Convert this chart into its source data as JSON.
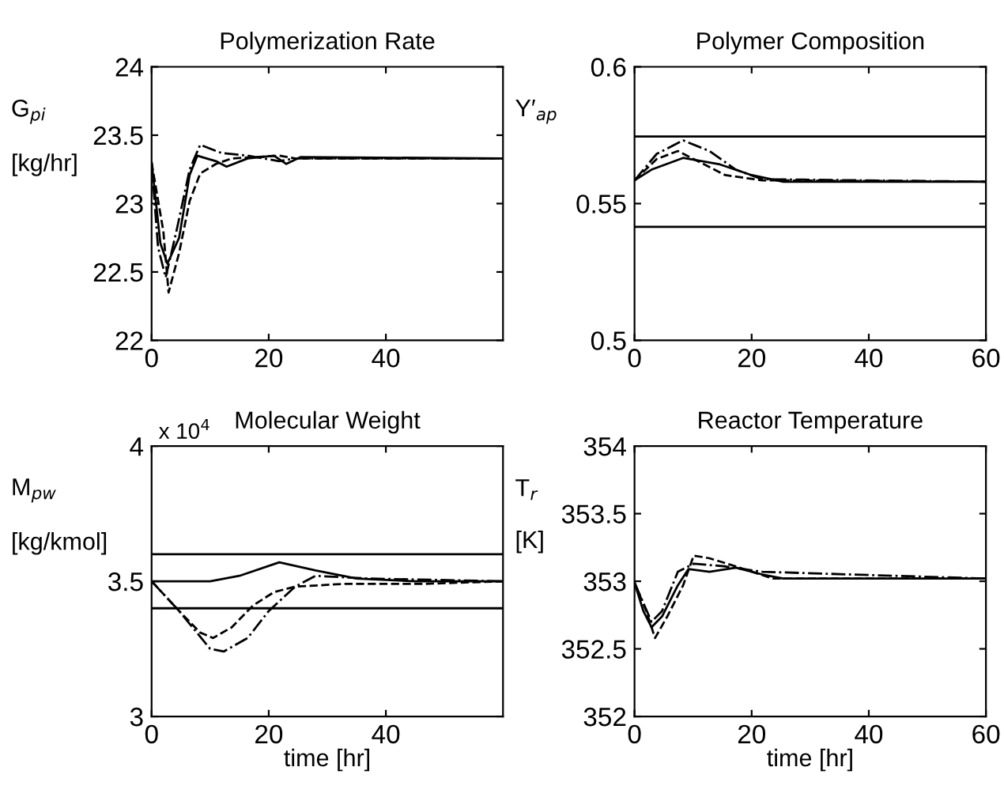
{
  "chart_data": [
    {
      "type": "line",
      "title": "Polymerization Rate",
      "ylabel": "G$_{pi}$\n\n[kg/hr]",
      "xlim": [
        0,
        60
      ],
      "xticks": [
        0,
        20,
        40
      ],
      "ylim": [
        22,
        24
      ],
      "yticks": [
        22,
        22.5,
        23,
        23.5,
        24
      ],
      "series": [
        {
          "color": "#000000",
          "line_style": "solid",
          "x": [
            0,
            1.5,
            2.7,
            4.7,
            6.5,
            7.8,
            11,
            12.8,
            16.4,
            20.9,
            23,
            25.4,
            60
          ],
          "values": [
            23.3,
            22.71,
            22.56,
            22.75,
            23.21,
            23.35,
            23.31,
            23.27,
            23.33,
            23.35,
            23.29,
            23.34,
            23.33
          ]
        },
        {
          "color": "#000000",
          "line_style": "dashed",
          "x": [
            0,
            2,
            2.9,
            4.7,
            6.5,
            8.3,
            11,
            13.7,
            21.8,
            24.5,
            60
          ],
          "values": [
            23.3,
            22.8,
            22.35,
            22.64,
            23.02,
            23.22,
            23.29,
            23.33,
            23.35,
            23.33,
            23.33
          ]
        },
        {
          "color": "#000000",
          "line_style": "dashdot",
          "x": [
            0,
            1.1,
            2.4,
            4.2,
            6.5,
            8.3,
            11.9,
            16.4,
            21.8,
            24.5,
            60
          ],
          "values": [
            23.3,
            22.68,
            22.46,
            22.79,
            23.25,
            23.43,
            23.37,
            23.35,
            23.31,
            23.33,
            23.33
          ]
        }
      ]
    },
    {
      "type": "line",
      "title": "Polymer Composition",
      "ylabel": "Y′$_{ap}$",
      "xlim": [
        0,
        60
      ],
      "xticks": [
        0,
        20,
        40,
        60
      ],
      "ylim": [
        0.5,
        0.6
      ],
      "yticks": [
        0.5,
        0.55,
        0.6
      ],
      "ref_lines": [
        {
          "axis": "y",
          "value": 0.5745,
          "color": "#000000"
        },
        {
          "axis": "y",
          "value": 0.5415,
          "color": "#000000"
        }
      ],
      "series": [
        {
          "color": "#000000",
          "line_style": "solid",
          "x": [
            0,
            2.9,
            8.3,
            14.6,
            20,
            25.4,
            60
          ],
          "values": [
            0.5585,
            0.5624,
            0.5667,
            0.5643,
            0.5604,
            0.558,
            0.558
          ]
        },
        {
          "color": "#000000",
          "line_style": "dashed",
          "x": [
            0,
            3.8,
            7.4,
            11,
            15.5,
            21.8,
            60
          ],
          "values": [
            0.5585,
            0.5663,
            0.5692,
            0.5653,
            0.5604,
            0.5585,
            0.558
          ]
        },
        {
          "color": "#000000",
          "line_style": "dashdot",
          "x": [
            0,
            3.8,
            8.3,
            12.8,
            17.3,
            21.8,
            60
          ],
          "values": [
            0.5585,
            0.5682,
            0.5731,
            0.5692,
            0.5624,
            0.5589,
            0.558
          ]
        }
      ]
    },
    {
      "type": "line",
      "title": "Molecular Weight",
      "ylabel": "M$_{pw}$\n\n[kg/kmol]",
      "xlabel": "time [hr]",
      "annotations": [
        "x 10$^{4}$"
      ],
      "xlim": [
        0,
        60
      ],
      "xticks": [
        0,
        20,
        40
      ],
      "ylim": [
        3,
        4
      ],
      "yticks": [
        3,
        3.5,
        4
      ],
      "ref_lines": [
        {
          "axis": "y",
          "value": 3.6,
          "color": "#000000"
        },
        {
          "axis": "y",
          "value": 3.4,
          "color": "#000000"
        }
      ],
      "series": [
        {
          "color": "#000000",
          "line_style": "solid",
          "x": [
            0,
            10,
            15,
            21.8,
            28,
            35,
            45,
            60
          ],
          "values": [
            3.5,
            3.5,
            3.52,
            3.57,
            3.54,
            3.51,
            3.5,
            3.5
          ]
        },
        {
          "color": "#000000",
          "line_style": "dashed",
          "x": [
            0,
            4.7,
            8.3,
            10.5,
            13.7,
            17.3,
            20.9,
            24.5,
            32.6,
            46,
            60
          ],
          "values": [
            3.5,
            3.39,
            3.31,
            3.29,
            3.33,
            3.41,
            3.46,
            3.48,
            3.49,
            3.49,
            3.5
          ]
        },
        {
          "color": "#000000",
          "line_style": "dashdot",
          "x": [
            0,
            4.7,
            10,
            12.3,
            16.4,
            20,
            24.5,
            28,
            37,
            60
          ],
          "values": [
            3.5,
            3.39,
            3.25,
            3.24,
            3.29,
            3.39,
            3.48,
            3.52,
            3.51,
            3.5
          ]
        }
      ]
    },
    {
      "type": "line",
      "title": "Reactor Temperature",
      "ylabel": "T$_{r}$\n\n[K]",
      "xlabel": "time [hr]",
      "xlim": [
        0,
        60
      ],
      "xticks": [
        0,
        20,
        40,
        60
      ],
      "ylim": [
        352,
        354
      ],
      "yticks": [
        352,
        352.5,
        353,
        353.5,
        354
      ],
      "series": [
        {
          "color": "#000000",
          "line_style": "solid",
          "x": [
            0,
            1.5,
            2.9,
            4.7,
            7.4,
            9.2,
            12.8,
            17.3,
            21.8,
            25.4,
            60
          ],
          "values": [
            352.99,
            352.78,
            352.66,
            352.74,
            352.97,
            353.09,
            353.07,
            353.1,
            353.05,
            353.02,
            353.02
          ]
        },
        {
          "color": "#000000",
          "line_style": "dashed",
          "x": [
            0,
            2,
            3.5,
            5.6,
            8.3,
            10.1,
            12.8,
            17.3,
            23.6,
            60
          ],
          "values": [
            352.99,
            352.78,
            352.58,
            352.74,
            352.97,
            353.19,
            353.17,
            353.11,
            353.02,
            353.02
          ]
        },
        {
          "color": "#000000",
          "line_style": "dashdot",
          "x": [
            0,
            2.9,
            4.7,
            7.4,
            10.1,
            15.5,
            21.8,
            60
          ],
          "values": [
            352.99,
            352.7,
            352.78,
            353.07,
            353.13,
            353.11,
            353.07,
            353.02
          ]
        }
      ]
    }
  ]
}
